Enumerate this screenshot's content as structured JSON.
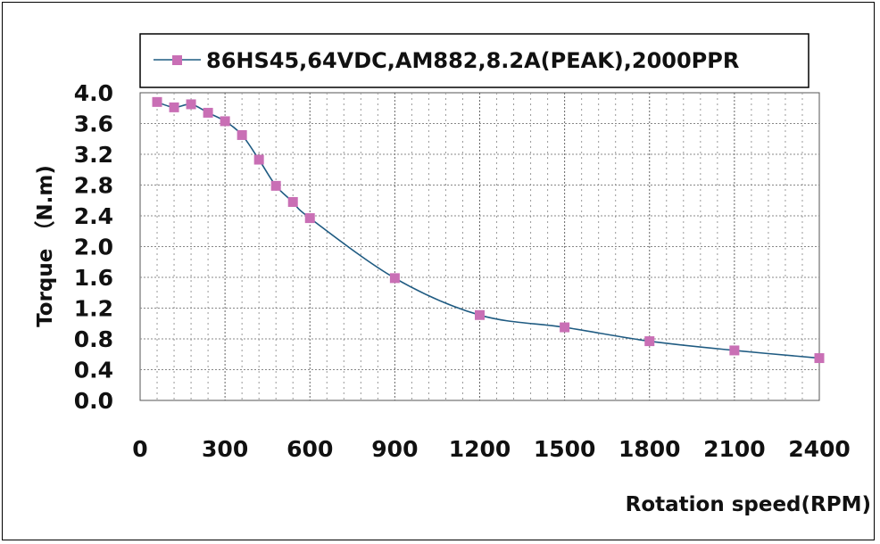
{
  "chart_data": {
    "type": "line",
    "xlabel": "Rotation speed(RPM)",
    "ylabel": "Torque （N.m)",
    "xlim": [
      0,
      2400
    ],
    "ylim": [
      0,
      4.0
    ],
    "x_ticks": [
      "0",
      "300",
      "600",
      "900",
      "1200",
      "1500",
      "1800",
      "2100",
      "2400"
    ],
    "y_ticks": [
      "4.0",
      "3.6",
      "3.2",
      "2.8",
      "2.4",
      "2.0",
      "1.6",
      "1.2",
      "0.8",
      "0.4",
      "0.0"
    ],
    "grid": true,
    "legend_position": "top",
    "series": [
      {
        "name": "86HS45,64VDC,AM882,8.2A(PEAK),2000PPR",
        "line_color": "#1f5b82",
        "marker_color": "#c96fb5",
        "x": [
          60,
          120,
          180,
          240,
          300,
          360,
          420,
          480,
          540,
          600,
          900,
          1200,
          1500,
          1800,
          2100,
          2400
        ],
        "y": [
          3.88,
          3.81,
          3.85,
          3.74,
          3.63,
          3.45,
          3.13,
          2.79,
          2.58,
          2.37,
          1.59,
          1.11,
          0.95,
          0.77,
          0.65,
          0.55
        ]
      }
    ]
  }
}
